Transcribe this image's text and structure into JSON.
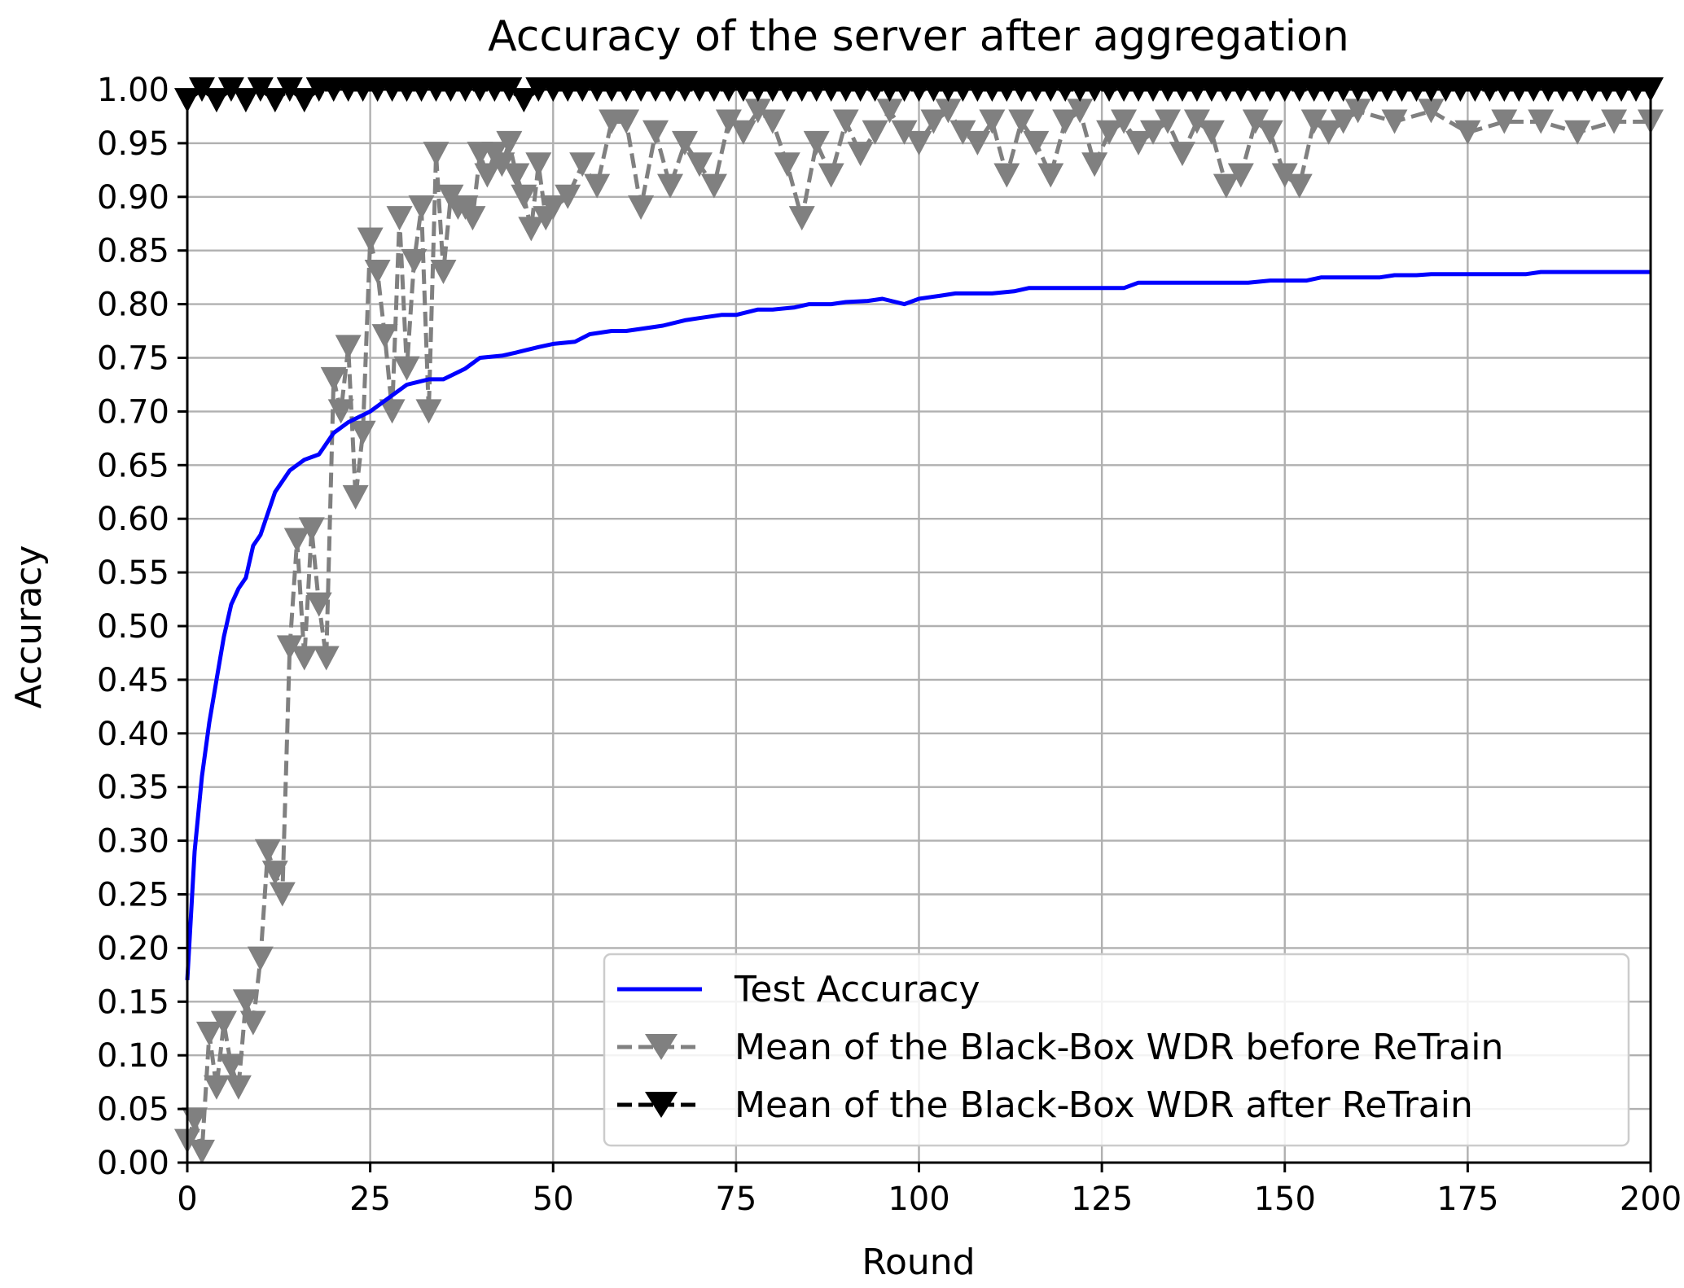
{
  "chart_data": {
    "type": "line",
    "title": "Accuracy of the server after aggregation",
    "xlabel": "Round",
    "ylabel": "Accuracy",
    "xlim": [
      0,
      200
    ],
    "ylim": [
      0,
      1.0
    ],
    "grid": true,
    "legend_position": "bottom-right",
    "x_ticks": [
      "0",
      "25",
      "50",
      "75",
      "100",
      "125",
      "150",
      "175",
      "200"
    ],
    "y_ticks": [
      "0.00",
      "0.05",
      "0.10",
      "0.15",
      "0.20",
      "0.25",
      "0.30",
      "0.35",
      "0.40",
      "0.45",
      "0.50",
      "0.55",
      "0.60",
      "0.65",
      "0.70",
      "0.75",
      "0.80",
      "0.85",
      "0.90",
      "0.95",
      "1.00"
    ],
    "series": [
      {
        "name": "Test Accuracy",
        "color": "#0000ff",
        "style": "solid",
        "marker": "none",
        "x": [
          0,
          1,
          2,
          3,
          4,
          5,
          6,
          7,
          8,
          9,
          10,
          12,
          14,
          16,
          18,
          20,
          22,
          25,
          28,
          30,
          33,
          35,
          38,
          40,
          43,
          45,
          48,
          50,
          53,
          55,
          58,
          60,
          63,
          65,
          68,
          70,
          73,
          75,
          78,
          80,
          83,
          85,
          88,
          90,
          93,
          95,
          98,
          100,
          103,
          105,
          108,
          110,
          113,
          115,
          118,
          120,
          123,
          125,
          128,
          130,
          133,
          135,
          138,
          140,
          143,
          145,
          148,
          150,
          153,
          155,
          158,
          160,
          163,
          165,
          168,
          170,
          173,
          175,
          178,
          180,
          183,
          185,
          188,
          190,
          193,
          195,
          198,
          200
        ],
        "y": [
          0.17,
          0.29,
          0.36,
          0.41,
          0.45,
          0.49,
          0.52,
          0.535,
          0.545,
          0.575,
          0.585,
          0.625,
          0.645,
          0.655,
          0.66,
          0.68,
          0.69,
          0.7,
          0.715,
          0.725,
          0.73,
          0.73,
          0.74,
          0.75,
          0.752,
          0.755,
          0.76,
          0.763,
          0.765,
          0.772,
          0.775,
          0.775,
          0.778,
          0.78,
          0.785,
          0.787,
          0.79,
          0.79,
          0.795,
          0.795,
          0.797,
          0.8,
          0.8,
          0.802,
          0.803,
          0.805,
          0.8,
          0.805,
          0.808,
          0.81,
          0.81,
          0.81,
          0.812,
          0.815,
          0.815,
          0.815,
          0.815,
          0.815,
          0.815,
          0.82,
          0.82,
          0.82,
          0.82,
          0.82,
          0.82,
          0.82,
          0.822,
          0.822,
          0.822,
          0.825,
          0.825,
          0.825,
          0.825,
          0.827,
          0.827,
          0.828,
          0.828,
          0.828,
          0.828,
          0.828,
          0.828,
          0.83,
          0.83,
          0.83,
          0.83,
          0.83,
          0.83,
          0.83
        ]
      },
      {
        "name": "Mean of the Black-Box WDR before ReTrain",
        "color": "#808080",
        "style": "dashed",
        "marker": "triangle-down",
        "x": [
          0,
          1,
          2,
          3,
          4,
          5,
          6,
          7,
          8,
          9,
          10,
          11,
          12,
          13,
          14,
          15,
          16,
          17,
          18,
          19,
          20,
          21,
          22,
          23,
          24,
          25,
          26,
          27,
          28,
          29,
          30,
          31,
          32,
          33,
          34,
          35,
          36,
          37,
          38,
          39,
          40,
          41,
          42,
          43,
          44,
          45,
          46,
          47,
          48,
          49,
          50,
          52,
          54,
          56,
          58,
          60,
          62,
          64,
          66,
          68,
          70,
          72,
          74,
          76,
          78,
          80,
          82,
          84,
          86,
          88,
          90,
          92,
          94,
          96,
          98,
          100,
          102,
          104,
          106,
          108,
          110,
          112,
          114,
          116,
          118,
          120,
          122,
          124,
          126,
          128,
          130,
          132,
          134,
          136,
          138,
          140,
          142,
          144,
          146,
          148,
          150,
          152,
          154,
          156,
          158,
          160,
          165,
          170,
          175,
          180,
          185,
          190,
          195,
          200
        ],
        "y": [
          0.02,
          0.04,
          0.01,
          0.12,
          0.07,
          0.13,
          0.09,
          0.07,
          0.15,
          0.13,
          0.19,
          0.29,
          0.27,
          0.25,
          0.48,
          0.58,
          0.47,
          0.59,
          0.52,
          0.47,
          0.73,
          0.7,
          0.76,
          0.62,
          0.68,
          0.86,
          0.83,
          0.77,
          0.7,
          0.88,
          0.74,
          0.84,
          0.89,
          0.7,
          0.94,
          0.83,
          0.9,
          0.89,
          0.89,
          0.88,
          0.94,
          0.92,
          0.94,
          0.93,
          0.95,
          0.92,
          0.9,
          0.87,
          0.93,
          0.88,
          0.89,
          0.9,
          0.93,
          0.91,
          0.97,
          0.97,
          0.89,
          0.96,
          0.91,
          0.95,
          0.93,
          0.91,
          0.97,
          0.96,
          0.98,
          0.97,
          0.93,
          0.88,
          0.95,
          0.92,
          0.97,
          0.94,
          0.96,
          0.98,
          0.96,
          0.95,
          0.97,
          0.98,
          0.96,
          0.95,
          0.97,
          0.92,
          0.97,
          0.95,
          0.92,
          0.97,
          0.98,
          0.93,
          0.96,
          0.97,
          0.95,
          0.96,
          0.97,
          0.94,
          0.97,
          0.96,
          0.91,
          0.92,
          0.97,
          0.96,
          0.92,
          0.91,
          0.97,
          0.96,
          0.97,
          0.98,
          0.97,
          0.98,
          0.96,
          0.97,
          0.97,
          0.96,
          0.97,
          0.97
        ]
      },
      {
        "name": "Mean of the Black-Box WDR after ReTrain",
        "color": "#000000",
        "style": "dashed",
        "marker": "triangle-down",
        "x": [
          0,
          2,
          4,
          6,
          8,
          10,
          12,
          14,
          16,
          18,
          20,
          22,
          24,
          26,
          28,
          30,
          32,
          34,
          36,
          38,
          40,
          42,
          44,
          46,
          48,
          50,
          52,
          54,
          56,
          58,
          60,
          62,
          64,
          66,
          68,
          70,
          72,
          74,
          76,
          78,
          80,
          82,
          84,
          86,
          88,
          90,
          92,
          94,
          96,
          98,
          100,
          102,
          104,
          106,
          108,
          110,
          112,
          114,
          116,
          118,
          120,
          122,
          124,
          126,
          128,
          130,
          132,
          134,
          136,
          138,
          140,
          142,
          144,
          146,
          148,
          150,
          152,
          154,
          156,
          158,
          160,
          162,
          164,
          166,
          168,
          170,
          172,
          174,
          176,
          178,
          180,
          182,
          184,
          186,
          188,
          190,
          192,
          194,
          196,
          198,
          200
        ],
        "y": [
          0.99,
          1.0,
          0.99,
          1.0,
          0.99,
          1.0,
          0.99,
          1.0,
          0.99,
          1.0,
          1.0,
          1.0,
          1.0,
          1.0,
          1.0,
          1.0,
          1.0,
          1.0,
          1.0,
          1.0,
          1.0,
          1.0,
          1.0,
          0.99,
          1.0,
          1.0,
          1.0,
          1.0,
          1.0,
          1.0,
          1.0,
          1.0,
          1.0,
          1.0,
          1.0,
          1.0,
          1.0,
          1.0,
          1.0,
          1.0,
          1.0,
          1.0,
          1.0,
          1.0,
          1.0,
          1.0,
          1.0,
          1.0,
          1.0,
          1.0,
          1.0,
          1.0,
          1.0,
          1.0,
          1.0,
          1.0,
          1.0,
          1.0,
          1.0,
          1.0,
          1.0,
          1.0,
          1.0,
          1.0,
          1.0,
          1.0,
          1.0,
          1.0,
          1.0,
          1.0,
          1.0,
          1.0,
          1.0,
          1.0,
          1.0,
          1.0,
          1.0,
          1.0,
          1.0,
          1.0,
          1.0,
          1.0,
          1.0,
          1.0,
          1.0,
          1.0,
          1.0,
          1.0,
          1.0,
          1.0,
          1.0,
          1.0,
          1.0,
          1.0,
          1.0,
          1.0,
          1.0,
          1.0,
          1.0,
          1.0,
          1.0
        ]
      }
    ]
  }
}
